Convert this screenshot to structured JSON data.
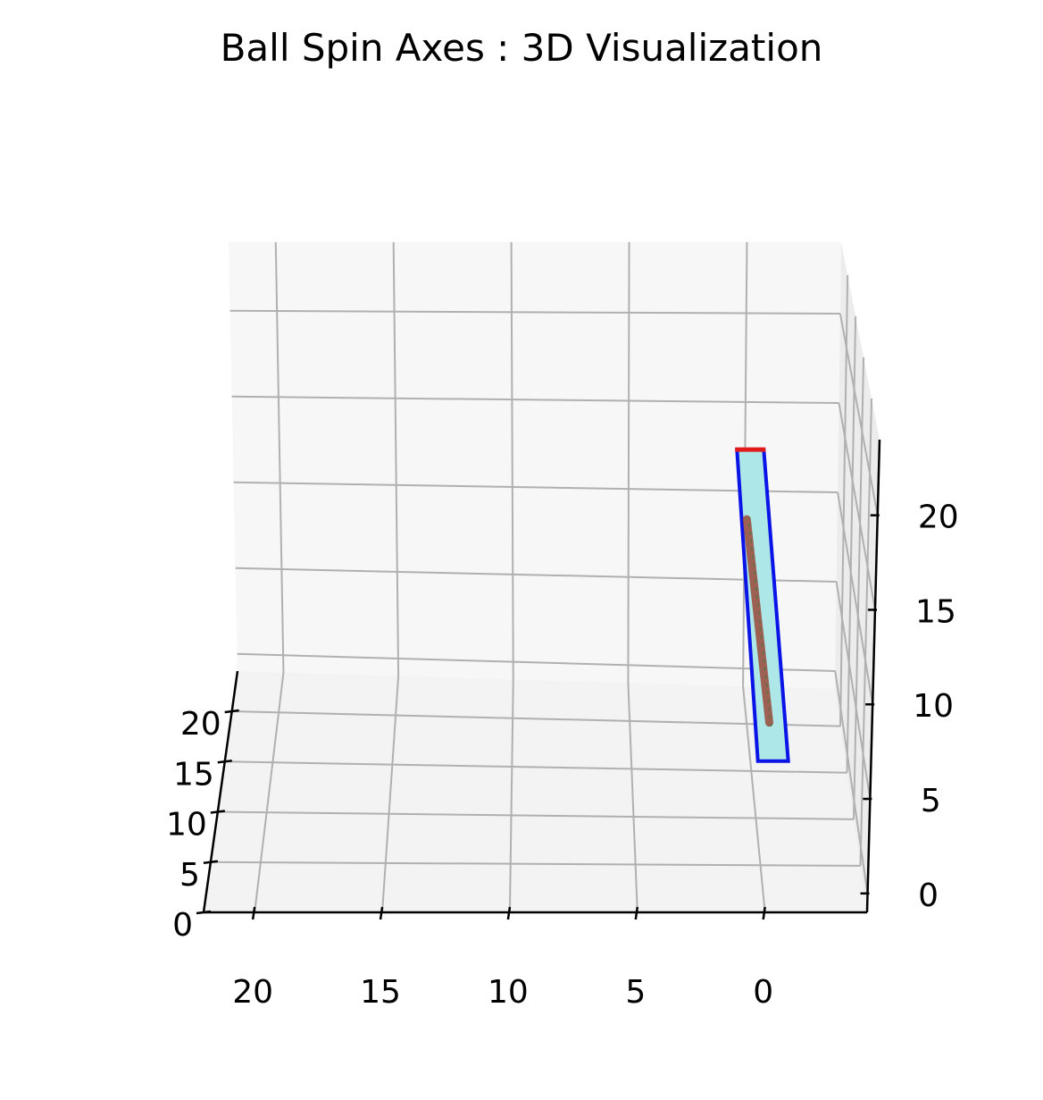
{
  "chart_data": {
    "type": "3d-bar",
    "title": "Ball Spin Axes : 3D Visualization",
    "xlabel": "",
    "ylabel": "",
    "zlabel": "",
    "x_ticks": [
      "20",
      "15",
      "10",
      "5",
      "0"
    ],
    "y_ticks": [
      "0",
      "5",
      "10",
      "15",
      "20"
    ],
    "z_ticks": [
      "0",
      "5",
      "10",
      "15",
      "20"
    ],
    "xlim": [
      -4,
      22
    ],
    "ylim": [
      0,
      24
    ],
    "zlim": [
      -1,
      24
    ],
    "grid": true,
    "bar": {
      "x": 0,
      "y": 0,
      "z_bottom": 7,
      "z_top": 15,
      "fill_color": "#aee7e7",
      "edge_color": "#0a14e6"
    },
    "axis_segment": {
      "z": 15,
      "color": "#e01b1b"
    },
    "spin_trace": {
      "z_range": [
        8,
        13
      ],
      "color": "#9a4a3a"
    },
    "pane_color": "#f3f3f3",
    "grid_color": "#b0b0b0"
  }
}
